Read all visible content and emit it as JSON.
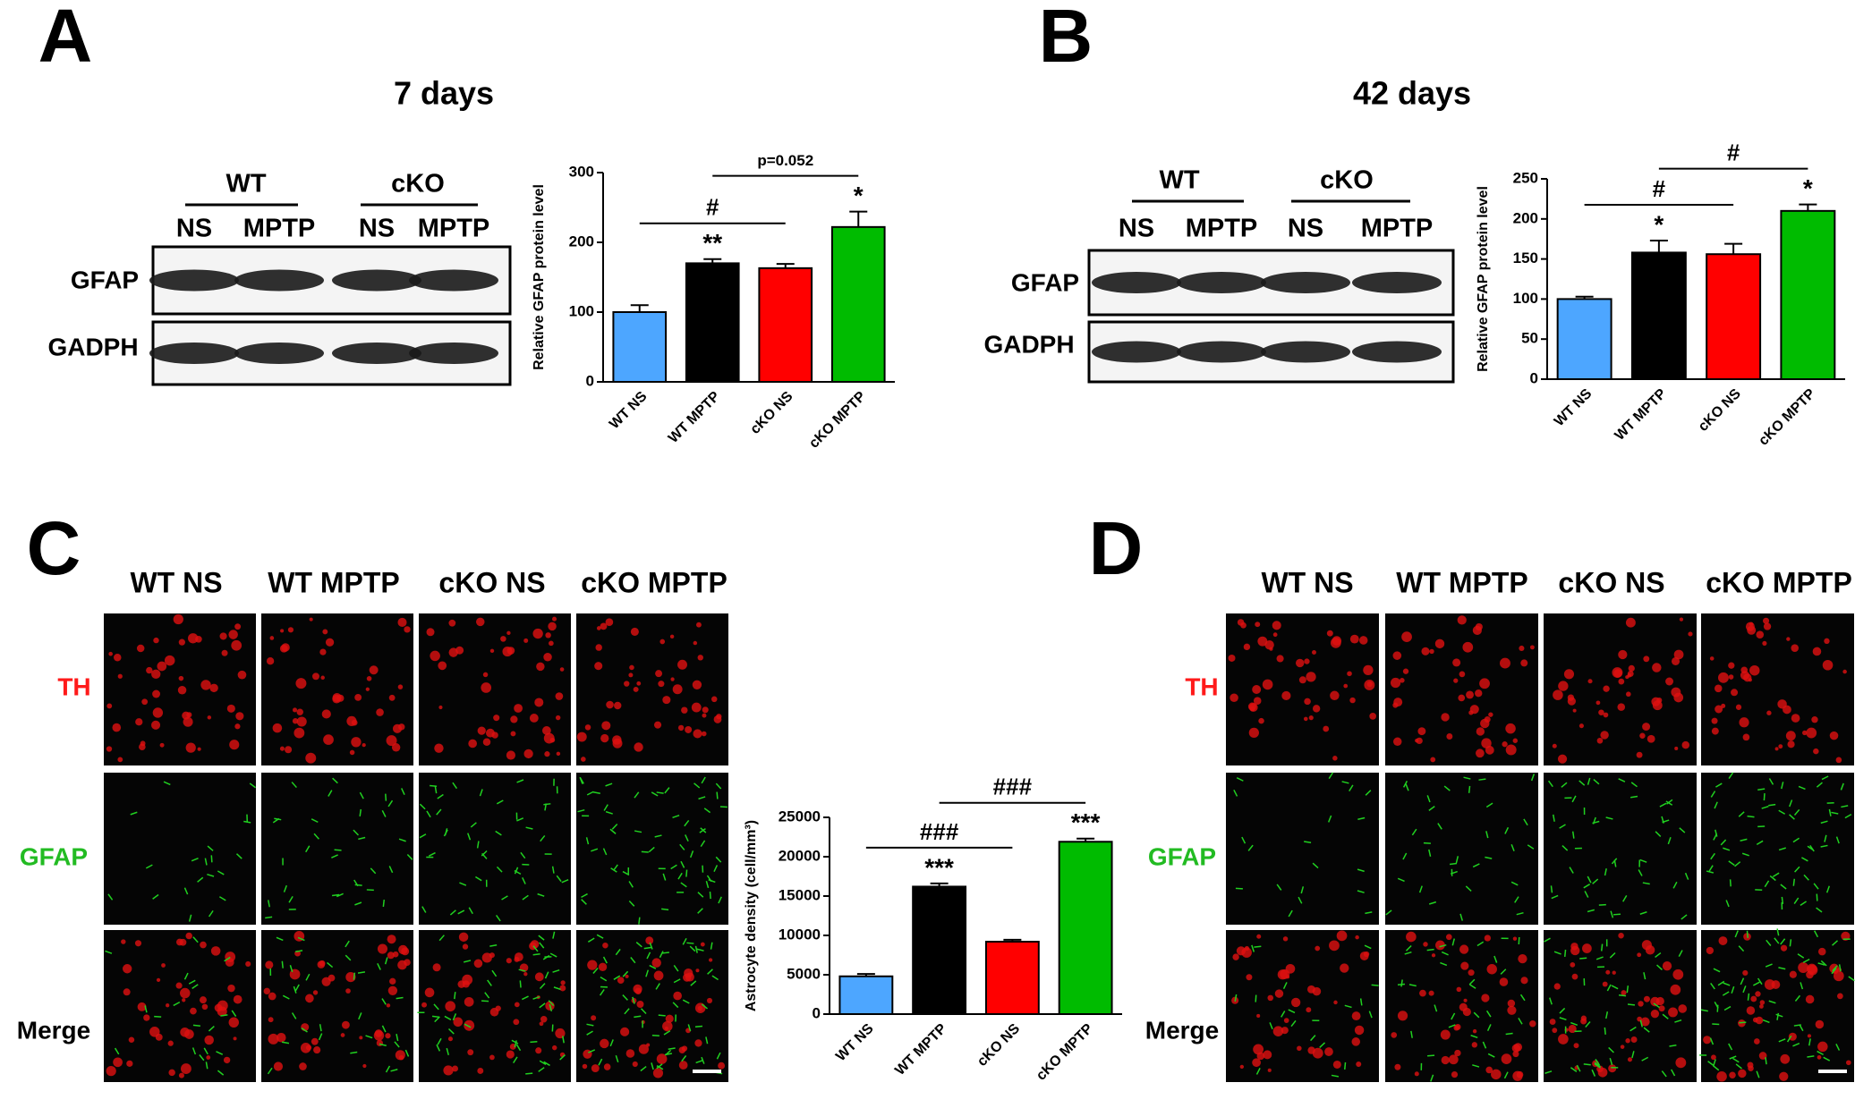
{
  "figure": {
    "panels": [
      "A",
      "B",
      "C",
      "D"
    ],
    "blots": [
      {
        "title": "7 days",
        "groups": [
          "WT",
          "cKO"
        ],
        "lanes": [
          "NS",
          "MPTP",
          "NS",
          "MPTP"
        ],
        "proteins": [
          "GFAP",
          "GADPH"
        ]
      },
      {
        "title": "42 days",
        "groups": [
          "WT",
          "cKO"
        ],
        "lanes": [
          "NS",
          "MPTP",
          "NS",
          "MPTP"
        ],
        "proteins": [
          "GFAP",
          "GADPH"
        ]
      }
    ],
    "images": [
      {
        "columns": [
          "WT NS",
          "WT MPTP",
          "cKO NS",
          "cKO MPTP"
        ],
        "rows": [
          "TH",
          "GFAP",
          "Merge"
        ]
      },
      {
        "columns": [
          "WT NS",
          "WT MPTP",
          "cKO NS",
          "cKO MPTP"
        ],
        "rows": [
          "TH",
          "GFAP",
          "Merge"
        ]
      }
    ]
  },
  "chart_data": [
    {
      "type": "bar",
      "ylabel": "Relative GFAP protein level",
      "categories": [
        "WT NS",
        "WT MPTP",
        "cKO NS",
        "cKO MPTP"
      ],
      "values": [
        100,
        170,
        163,
        222
      ],
      "errors": [
        10,
        6,
        6,
        22
      ],
      "colors": [
        "#4da6ff",
        "#000000",
        "#ff0000",
        "#00bb00"
      ],
      "ylim": [
        0,
        300
      ],
      "yticks": [
        0,
        100,
        200,
        300
      ],
      "stars": [
        null,
        "**",
        null,
        "*"
      ],
      "brackets": [
        {
          "label": "#",
          "from": 0,
          "to": 2
        },
        {
          "label": "p=0.052",
          "from": 1,
          "to": 3
        }
      ]
    },
    {
      "type": "bar",
      "ylabel": "Relative GFAP protein level",
      "categories": [
        "WT NS",
        "WT MPTP",
        "cKO NS",
        "cKO MPTP"
      ],
      "values": [
        100,
        158,
        156,
        210
      ],
      "errors": [
        3,
        15,
        13,
        8
      ],
      "colors": [
        "#4da6ff",
        "#000000",
        "#ff0000",
        "#00bb00"
      ],
      "ylim": [
        0,
        250
      ],
      "yticks": [
        0,
        50,
        100,
        150,
        200,
        250
      ],
      "stars": [
        null,
        "*",
        null,
        "*"
      ],
      "brackets": [
        {
          "label": "#",
          "from": 0,
          "to": 2
        },
        {
          "label": "#",
          "from": 1,
          "to": 3
        }
      ]
    },
    {
      "type": "bar",
      "ylabel": "Astrocyte density (cell/mm³)",
      "categories": [
        "WT NS",
        "WT MPTP",
        "cKO NS",
        "cKO MPTP"
      ],
      "values": [
        4800,
        16200,
        9200,
        21900
      ],
      "errors": [
        300,
        400,
        250,
        400
      ],
      "colors": [
        "#4da6ff",
        "#000000",
        "#ff0000",
        "#00bb00"
      ],
      "ylim": [
        0,
        25000
      ],
      "yticks": [
        0,
        5000,
        10000,
        15000,
        20000,
        25000
      ],
      "stars": [
        null,
        "***",
        null,
        "***"
      ],
      "brackets": [
        {
          "label": "###",
          "from": 0,
          "to": 2
        },
        {
          "label": "###",
          "from": 1,
          "to": 3
        }
      ]
    }
  ]
}
